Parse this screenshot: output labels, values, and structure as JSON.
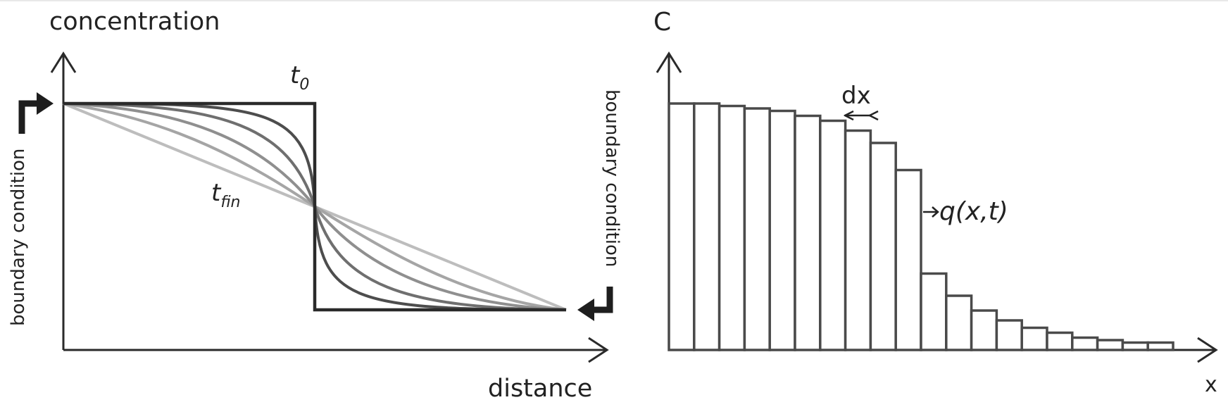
{
  "left_panel": {
    "y_label": "concentration",
    "x_label": "distance",
    "t0_label": "t",
    "t0_sub": "0",
    "tfin_label": "t",
    "tfin_sub": "fin",
    "bc_left_label": "boundary condition",
    "bc_right_label": "boundary condition",
    "curve_colors": [
      "#2a2a2a",
      "#4d4d4d",
      "#6f6f6f",
      "#8f8f8f",
      "#a5a5a5",
      "#bdbdbd"
    ]
  },
  "right_panel": {
    "y_label": "C",
    "x_label": "x",
    "dx_label": "dx",
    "flux_label": "q(x,t)",
    "bar_values": [
      1.0,
      1.0,
      0.99,
      0.98,
      0.97,
      0.95,
      0.93,
      0.89,
      0.84,
      0.73,
      0.31,
      0.22,
      0.16,
      0.12,
      0.09,
      0.07,
      0.05,
      0.04,
      0.03,
      0.03
    ],
    "bar_color": "#4a4a4a"
  }
}
